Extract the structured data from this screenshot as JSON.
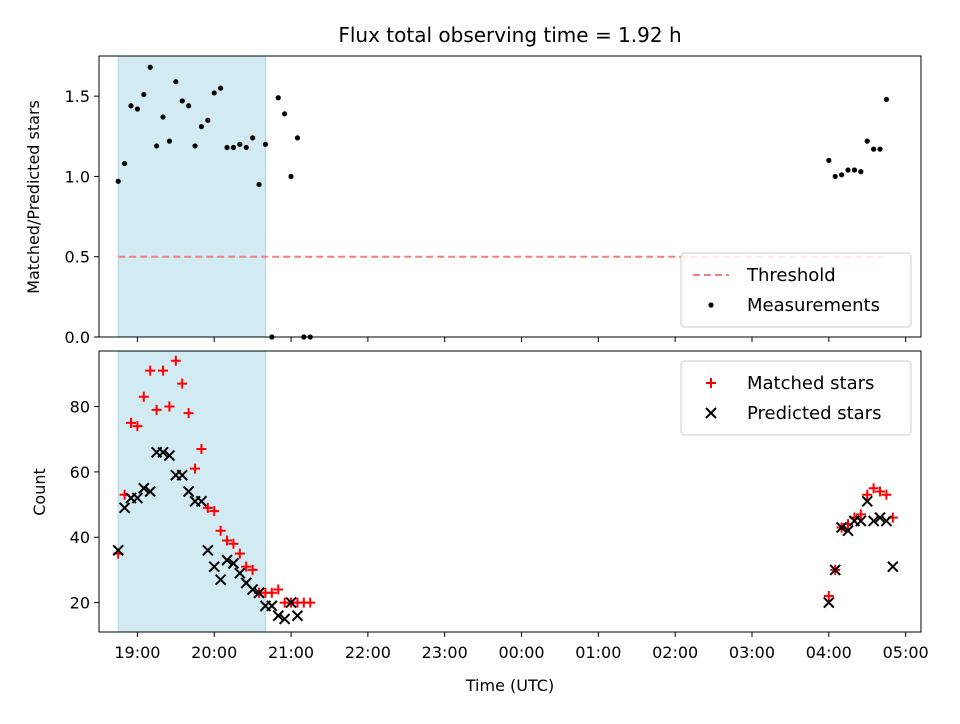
{
  "chart_data": [
    {
      "type": "scatter",
      "title": "Flux total observing time = 1.92 h",
      "xlabel": "",
      "ylabel": "Matched/Predicted stars",
      "xlim": [
        "18:30",
        "05:12"
      ],
      "ylim": [
        0,
        1.75
      ],
      "yticks": [
        "0.0",
        "0.5",
        "1.0",
        "1.5"
      ],
      "legend": {
        "placement": "lower-right",
        "entries": [
          "Threshold",
          "Measurements"
        ]
      },
      "highlight_span": {
        "x": [
          "18:45",
          "20:40"
        ],
        "color": "#add8e6"
      },
      "threshold": {
        "name": "Threshold",
        "y": 0.5,
        "x": [
          "18:45",
          "04:45"
        ],
        "color": "#f08080"
      },
      "series": [
        {
          "name": "Measurements",
          "color": "#000000",
          "marker": "dot",
          "points": [
            [
              "18:45",
              0.97
            ],
            [
              "18:50",
              1.08
            ],
            [
              "18:55",
              1.44
            ],
            [
              "19:00",
              1.42
            ],
            [
              "19:05",
              1.51
            ],
            [
              "19:10",
              1.68
            ],
            [
              "19:15",
              1.19
            ],
            [
              "19:20",
              1.37
            ],
            [
              "19:25",
              1.22
            ],
            [
              "19:30",
              1.59
            ],
            [
              "19:35",
              1.47
            ],
            [
              "19:40",
              1.44
            ],
            [
              "19:45",
              1.19
            ],
            [
              "19:50",
              1.31
            ],
            [
              "19:55",
              1.35
            ],
            [
              "20:00",
              1.52
            ],
            [
              "20:05",
              1.55
            ],
            [
              "20:10",
              1.18
            ],
            [
              "20:15",
              1.18
            ],
            [
              "20:20",
              1.2
            ],
            [
              "20:25",
              1.18
            ],
            [
              "20:30",
              1.24
            ],
            [
              "20:35",
              0.95
            ],
            [
              "20:40",
              1.2
            ],
            [
              "20:45",
              0.0
            ],
            [
              "20:50",
              1.49
            ],
            [
              "20:55",
              1.39
            ],
            [
              "21:00",
              1.0
            ],
            [
              "21:05",
              1.24
            ],
            [
              "21:10",
              0.0
            ],
            [
              "21:15",
              0.0
            ],
            [
              "04:00",
              1.1
            ],
            [
              "04:05",
              1.0
            ],
            [
              "04:10",
              1.01
            ],
            [
              "04:15",
              1.04
            ],
            [
              "04:20",
              1.04
            ],
            [
              "04:25",
              1.03
            ],
            [
              "04:30",
              1.22
            ],
            [
              "04:35",
              1.17
            ],
            [
              "04:40",
              1.17
            ],
            [
              "04:45",
              1.48
            ]
          ]
        }
      ]
    },
    {
      "type": "scatter",
      "title": "",
      "xlabel": "Time (UTC)",
      "ylabel": "Count",
      "xlim": [
        "18:30",
        "05:12"
      ],
      "ylim": [
        11,
        97
      ],
      "yticks": [
        "20",
        "40",
        "60",
        "80"
      ],
      "xticks": [
        "19:00",
        "20:00",
        "21:00",
        "22:00",
        "23:00",
        "00:00",
        "01:00",
        "02:00",
        "03:00",
        "04:00",
        "05:00"
      ],
      "legend": {
        "placement": "upper-right",
        "entries": [
          "Matched stars",
          "Predicted stars"
        ]
      },
      "highlight_span": {
        "x": [
          "18:45",
          "20:40"
        ],
        "color": "#add8e6"
      },
      "series": [
        {
          "name": "Matched stars",
          "color": "#ff0000",
          "marker": "plus",
          "points": [
            [
              "18:45",
              35
            ],
            [
              "18:50",
              53
            ],
            [
              "18:55",
              75
            ],
            [
              "19:00",
              74
            ],
            [
              "19:05",
              83
            ],
            [
              "19:10",
              91
            ],
            [
              "19:15",
              79
            ],
            [
              "19:20",
              91
            ],
            [
              "19:25",
              80
            ],
            [
              "19:30",
              94
            ],
            [
              "19:35",
              87
            ],
            [
              "19:40",
              78
            ],
            [
              "19:45",
              61
            ],
            [
              "19:50",
              67
            ],
            [
              "19:55",
              49
            ],
            [
              "20:00",
              48
            ],
            [
              "20:05",
              42
            ],
            [
              "20:10",
              39
            ],
            [
              "20:15",
              38
            ],
            [
              "20:20",
              35
            ],
            [
              "20:25",
              31
            ],
            [
              "20:30",
              30
            ],
            [
              "20:35",
              23
            ],
            [
              "20:40",
              23
            ],
            [
              "20:45",
              23
            ],
            [
              "20:50",
              24
            ],
            [
              "20:55",
              20
            ],
            [
              "21:00",
              20
            ],
            [
              "21:05",
              20
            ],
            [
              "21:10",
              20
            ],
            [
              "21:15",
              20
            ],
            [
              "04:00",
              22
            ],
            [
              "04:05",
              30
            ],
            [
              "04:10",
              43
            ],
            [
              "04:15",
              44
            ],
            [
              "04:20",
              46
            ],
            [
              "04:25",
              47
            ],
            [
              "04:30",
              53
            ],
            [
              "04:35",
              55
            ],
            [
              "04:40",
              54
            ],
            [
              "04:45",
              53
            ],
            [
              "04:50",
              46
            ]
          ]
        },
        {
          "name": "Predicted stars",
          "color": "#000000",
          "marker": "x",
          "points": [
            [
              "18:45",
              36
            ],
            [
              "18:50",
              49
            ],
            [
              "18:55",
              52
            ],
            [
              "19:00",
              52
            ],
            [
              "19:05",
              55
            ],
            [
              "19:10",
              54
            ],
            [
              "19:15",
              66
            ],
            [
              "19:20",
              66
            ],
            [
              "19:25",
              65
            ],
            [
              "19:30",
              59
            ],
            [
              "19:35",
              59
            ],
            [
              "19:40",
              54
            ],
            [
              "19:45",
              51
            ],
            [
              "19:50",
              51
            ],
            [
              "19:55",
              36
            ],
            [
              "20:00",
              31
            ],
            [
              "20:05",
              27
            ],
            [
              "20:10",
              33
            ],
            [
              "20:15",
              32
            ],
            [
              "20:20",
              29
            ],
            [
              "20:25",
              26
            ],
            [
              "20:30",
              24
            ],
            [
              "20:35",
              23
            ],
            [
              "20:40",
              19
            ],
            [
              "20:45",
              19
            ],
            [
              "20:50",
              16
            ],
            [
              "20:55",
              15
            ],
            [
              "21:00",
              20
            ],
            [
              "21:05",
              16
            ],
            [
              "04:00",
              20
            ],
            [
              "04:05",
              30
            ],
            [
              "04:10",
              43
            ],
            [
              "04:15",
              42
            ],
            [
              "04:20",
              45
            ],
            [
              "04:25",
              45
            ],
            [
              "04:30",
              51
            ],
            [
              "04:35",
              45
            ],
            [
              "04:40",
              46
            ],
            [
              "04:45",
              45
            ],
            [
              "04:50",
              31
            ]
          ]
        }
      ]
    }
  ]
}
